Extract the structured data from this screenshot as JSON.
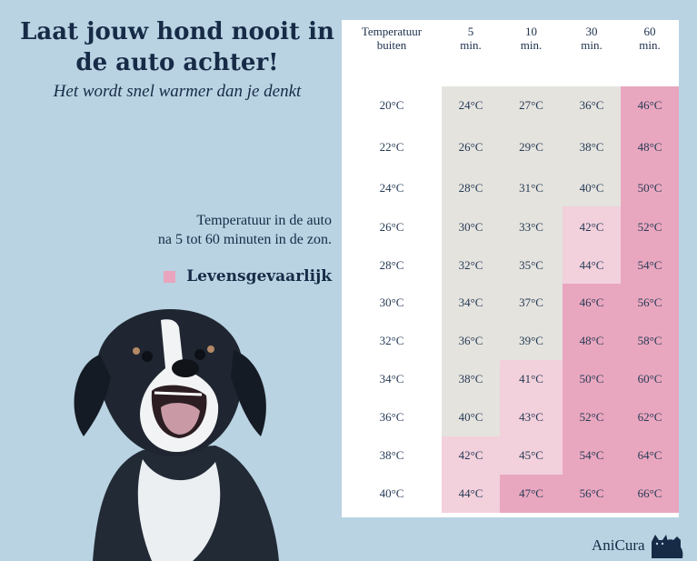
{
  "title": "Laat jouw hond nooit in de auto achter!",
  "subtitle": "Het wordt snel warmer dan je denkt",
  "caption": {
    "line1": "Temperatuur in de auto",
    "line2": "na 5 tot 60 minuten in de zon."
  },
  "legend": {
    "label": "Levensgevaarlijk",
    "color": "#e8a5bd"
  },
  "colors": {
    "grey": "#e4e3de",
    "light_pink": "#f2d0dc",
    "dark_pink": "#e9a7bf",
    "text": "#172b47",
    "background": "#b9d3e2"
  },
  "table": {
    "headers": [
      "Temperatuur\nbuiten",
      "5\nmin.",
      "10\nmin.",
      "30\nmin.",
      "60\nmin."
    ],
    "rows": [
      {
        "outside": "20°C",
        "values": [
          "24°C",
          "27°C",
          "36°C",
          "46°C"
        ],
        "tones": [
          "grey",
          "grey",
          "grey",
          "dark"
        ]
      },
      {
        "outside": "22°C",
        "values": [
          "26°C",
          "29°C",
          "38°C",
          "48°C"
        ],
        "tones": [
          "grey",
          "grey",
          "grey",
          "dark"
        ]
      },
      {
        "outside": "24°C",
        "values": [
          "28°C",
          "31°C",
          "40°C",
          "50°C"
        ],
        "tones": [
          "grey",
          "grey",
          "grey",
          "dark"
        ]
      },
      {
        "outside": "26°C",
        "values": [
          "30°C",
          "33°C",
          "42°C",
          "52°C"
        ],
        "tones": [
          "grey",
          "grey",
          "light",
          "dark"
        ]
      },
      {
        "outside": "28°C",
        "values": [
          "32°C",
          "35°C",
          "44°C",
          "54°C"
        ],
        "tones": [
          "grey",
          "grey",
          "light",
          "dark"
        ]
      },
      {
        "outside": "30°C",
        "values": [
          "34°C",
          "37°C",
          "46°C",
          "56°C"
        ],
        "tones": [
          "grey",
          "grey",
          "dark",
          "dark"
        ]
      },
      {
        "outside": "32°C",
        "values": [
          "36°C",
          "39°C",
          "48°C",
          "58°C"
        ],
        "tones": [
          "grey",
          "grey",
          "dark",
          "dark"
        ]
      },
      {
        "outside": "34°C",
        "values": [
          "38°C",
          "41°C",
          "50°C",
          "60°C"
        ],
        "tones": [
          "grey",
          "light",
          "dark",
          "dark"
        ]
      },
      {
        "outside": "36°C",
        "values": [
          "40°C",
          "43°C",
          "52°C",
          "62°C"
        ],
        "tones": [
          "grey",
          "light",
          "dark",
          "dark"
        ]
      },
      {
        "outside": "38°C",
        "values": [
          "42°C",
          "45°C",
          "54°C",
          "64°C"
        ],
        "tones": [
          "light",
          "light",
          "dark",
          "dark"
        ]
      },
      {
        "outside": "40°C",
        "values": [
          "44°C",
          "47°C",
          "56°C",
          "66°C"
        ],
        "tones": [
          "light",
          "dark",
          "dark",
          "dark"
        ]
      }
    ]
  },
  "image": {
    "subject": "dog-photo"
  },
  "brand": {
    "name": "AniCura",
    "icon": "cat-dog-logo-icon"
  }
}
